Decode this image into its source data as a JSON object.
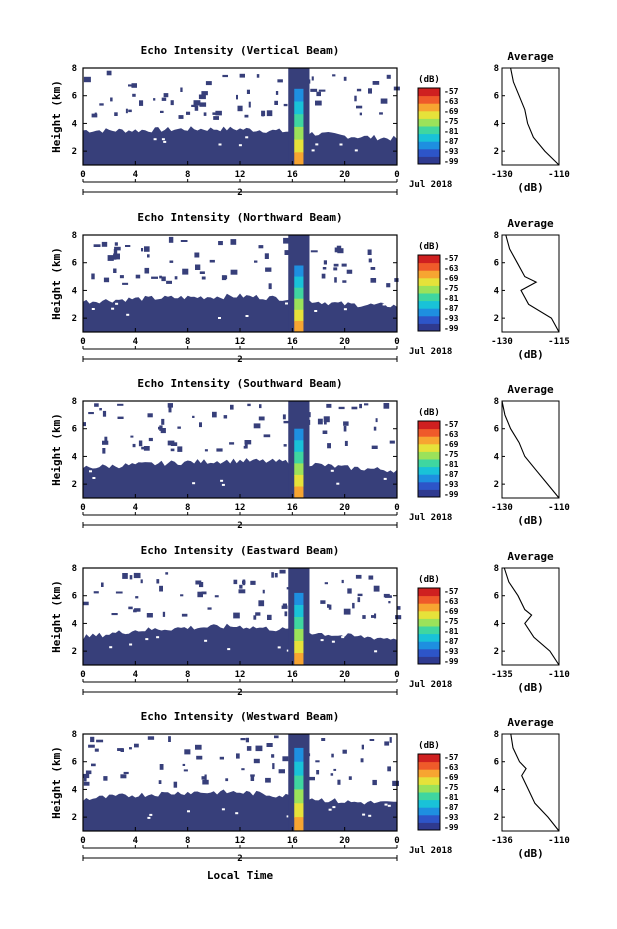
{
  "xlabel_bottom": "Local Time",
  "date_label": "Jul 2018",
  "x_ticks": [
    "0",
    "4",
    "8",
    "12",
    "16",
    "20",
    "0"
  ],
  "x_day_marker": "2",
  "ylabel": "Height (km)",
  "y_ticks": [
    "2",
    "4",
    "6",
    "8"
  ],
  "colorbar": {
    "unit_label": "(dB)",
    "tick_labels": [
      "-57",
      "-63",
      "-69",
      "-75",
      "-81",
      "-87",
      "-93",
      "-99"
    ],
    "colors": [
      "#2f3a8f",
      "#2d55c8",
      "#1e8fe0",
      "#19c2d8",
      "#3fd6a0",
      "#9be25a",
      "#e6e23a",
      "#f7a531",
      "#ef5a2a",
      "#cf2020"
    ]
  },
  "panels": [
    {
      "title": "Echo Intensity (Vertical Beam)",
      "avg_title": "Average",
      "avg_xticks": [
        "-130",
        "-110"
      ],
      "avg_xlabel": "(dB)"
    },
    {
      "title": "Echo Intensity (Northward Beam)",
      "avg_title": "Average",
      "avg_xticks": [
        "-130",
        "-115"
      ],
      "avg_xlabel": "(dB)"
    },
    {
      "title": "Echo Intensity (Southward Beam)",
      "avg_title": "Average",
      "avg_xticks": [
        "-130",
        "-110"
      ],
      "avg_xlabel": "(dB)"
    },
    {
      "title": "Echo Intensity (Eastward Beam)",
      "avg_title": "Average",
      "avg_xticks": [
        "-135",
        "-110"
      ],
      "avg_xlabel": "(dB)"
    },
    {
      "title": "Echo Intensity (Westward Beam)",
      "avg_title": "Average",
      "avg_xticks": [
        "-136",
        "-110"
      ],
      "avg_xlabel": "(dB)"
    }
  ],
  "chart_data": [
    {
      "type": "heatmap",
      "title": "Echo Intensity (Vertical Beam)",
      "xlabel": "",
      "ylabel": "Height (km)",
      "xlim": [
        0,
        24
      ],
      "ylim": [
        1,
        8
      ],
      "cloud_top_km": [
        [
          0,
          3.5
        ],
        [
          4,
          3.5
        ],
        [
          8,
          3.6
        ],
        [
          12,
          3.6
        ],
        [
          16,
          3.4
        ],
        [
          20,
          3.1
        ],
        [
          24,
          2.9
        ]
      ],
      "convective_core": {
        "x_start": 16.3,
        "x_end": 16.7,
        "top_km": 6.5
      },
      "profile": {
        "x_range": [
          -130,
          -110
        ],
        "points": [
          [
            -127,
            8
          ],
          [
            -126,
            7
          ],
          [
            -124,
            6
          ],
          [
            -122,
            5
          ],
          [
            -121,
            4
          ],
          [
            -119,
            3
          ],
          [
            -115,
            2
          ],
          [
            -110,
            1
          ]
        ]
      }
    },
    {
      "type": "heatmap",
      "title": "Echo Intensity (Northward Beam)",
      "xlabel": "",
      "ylabel": "Height (km)",
      "xlim": [
        0,
        24
      ],
      "ylim": [
        1,
        8
      ],
      "cloud_top_km": [
        [
          0,
          3.2
        ],
        [
          4,
          3.4
        ],
        [
          8,
          3.5
        ],
        [
          12,
          3.6
        ],
        [
          16,
          3.4
        ],
        [
          20,
          3.0
        ],
        [
          24,
          2.9
        ]
      ],
      "convective_core": {
        "x_start": 16.3,
        "x_end": 16.7,
        "top_km": 5.8
      },
      "profile": {
        "x_range": [
          -130,
          -115
        ],
        "points": [
          [
            -129,
            8
          ],
          [
            -128,
            7
          ],
          [
            -126,
            6
          ],
          [
            -124,
            5
          ],
          [
            -121,
            4.6
          ],
          [
            -125,
            4
          ],
          [
            -123,
            3
          ],
          [
            -117,
            2
          ],
          [
            -115,
            1
          ]
        ]
      }
    },
    {
      "type": "heatmap",
      "title": "Echo Intensity (Southward Beam)",
      "xlabel": "",
      "ylabel": "Height (km)",
      "xlim": [
        0,
        24
      ],
      "ylim": [
        1,
        8
      ],
      "cloud_top_km": [
        [
          0,
          3.2
        ],
        [
          4,
          3.4
        ],
        [
          8,
          3.6
        ],
        [
          12,
          3.7
        ],
        [
          16,
          3.6
        ],
        [
          20,
          3.2
        ],
        [
          24,
          3.0
        ]
      ],
      "convective_core": {
        "x_start": 16.3,
        "x_end": 16.7,
        "top_km": 6.0
      },
      "profile": {
        "x_range": [
          -130,
          -110
        ],
        "points": [
          [
            -130,
            8
          ],
          [
            -129,
            7
          ],
          [
            -127,
            6
          ],
          [
            -124,
            5
          ],
          [
            -122,
            4
          ],
          [
            -118,
            3
          ],
          [
            -114,
            2
          ],
          [
            -110,
            1
          ]
        ]
      }
    },
    {
      "type": "heatmap",
      "title": "Echo Intensity (Eastward Beam)",
      "xlabel": "",
      "ylabel": "Height (km)",
      "xlim": [
        0,
        24
      ],
      "ylim": [
        1,
        8
      ],
      "cloud_top_km": [
        [
          0,
          3.0
        ],
        [
          4,
          3.5
        ],
        [
          8,
          3.7
        ],
        [
          12,
          3.8
        ],
        [
          16,
          3.5
        ],
        [
          20,
          3.1
        ],
        [
          24,
          2.9
        ]
      ],
      "convective_core": {
        "x_start": 16.3,
        "x_end": 16.7,
        "top_km": 6.2
      },
      "profile": {
        "x_range": [
          -135,
          -110
        ],
        "points": [
          [
            -134,
            8
          ],
          [
            -132,
            7
          ],
          [
            -128,
            6
          ],
          [
            -125,
            5
          ],
          [
            -122,
            4.6
          ],
          [
            -125,
            4
          ],
          [
            -121,
            3
          ],
          [
            -114,
            2
          ],
          [
            -110,
            1
          ]
        ]
      }
    },
    {
      "type": "heatmap",
      "title": "Echo Intensity (Westward Beam)",
      "xlabel": "Local Time",
      "ylabel": "Height (km)",
      "xlim": [
        0,
        24
      ],
      "ylim": [
        1,
        8
      ],
      "cloud_top_km": [
        [
          0,
          3.3
        ],
        [
          4,
          3.6
        ],
        [
          8,
          3.8
        ],
        [
          12,
          3.8
        ],
        [
          16,
          3.5
        ],
        [
          20,
          3.1
        ],
        [
          24,
          3.0
        ]
      ],
      "convective_core": {
        "x_start": 16.3,
        "x_end": 16.7,
        "top_km": 7.0
      },
      "profile": {
        "x_range": [
          -136,
          -110
        ],
        "points": [
          [
            -132,
            8
          ],
          [
            -131,
            7
          ],
          [
            -128,
            6
          ],
          [
            -125,
            5.5
          ],
          [
            -127,
            5
          ],
          [
            -124,
            4
          ],
          [
            -121,
            3
          ],
          [
            -115,
            2
          ],
          [
            -110,
            1
          ]
        ]
      }
    }
  ]
}
